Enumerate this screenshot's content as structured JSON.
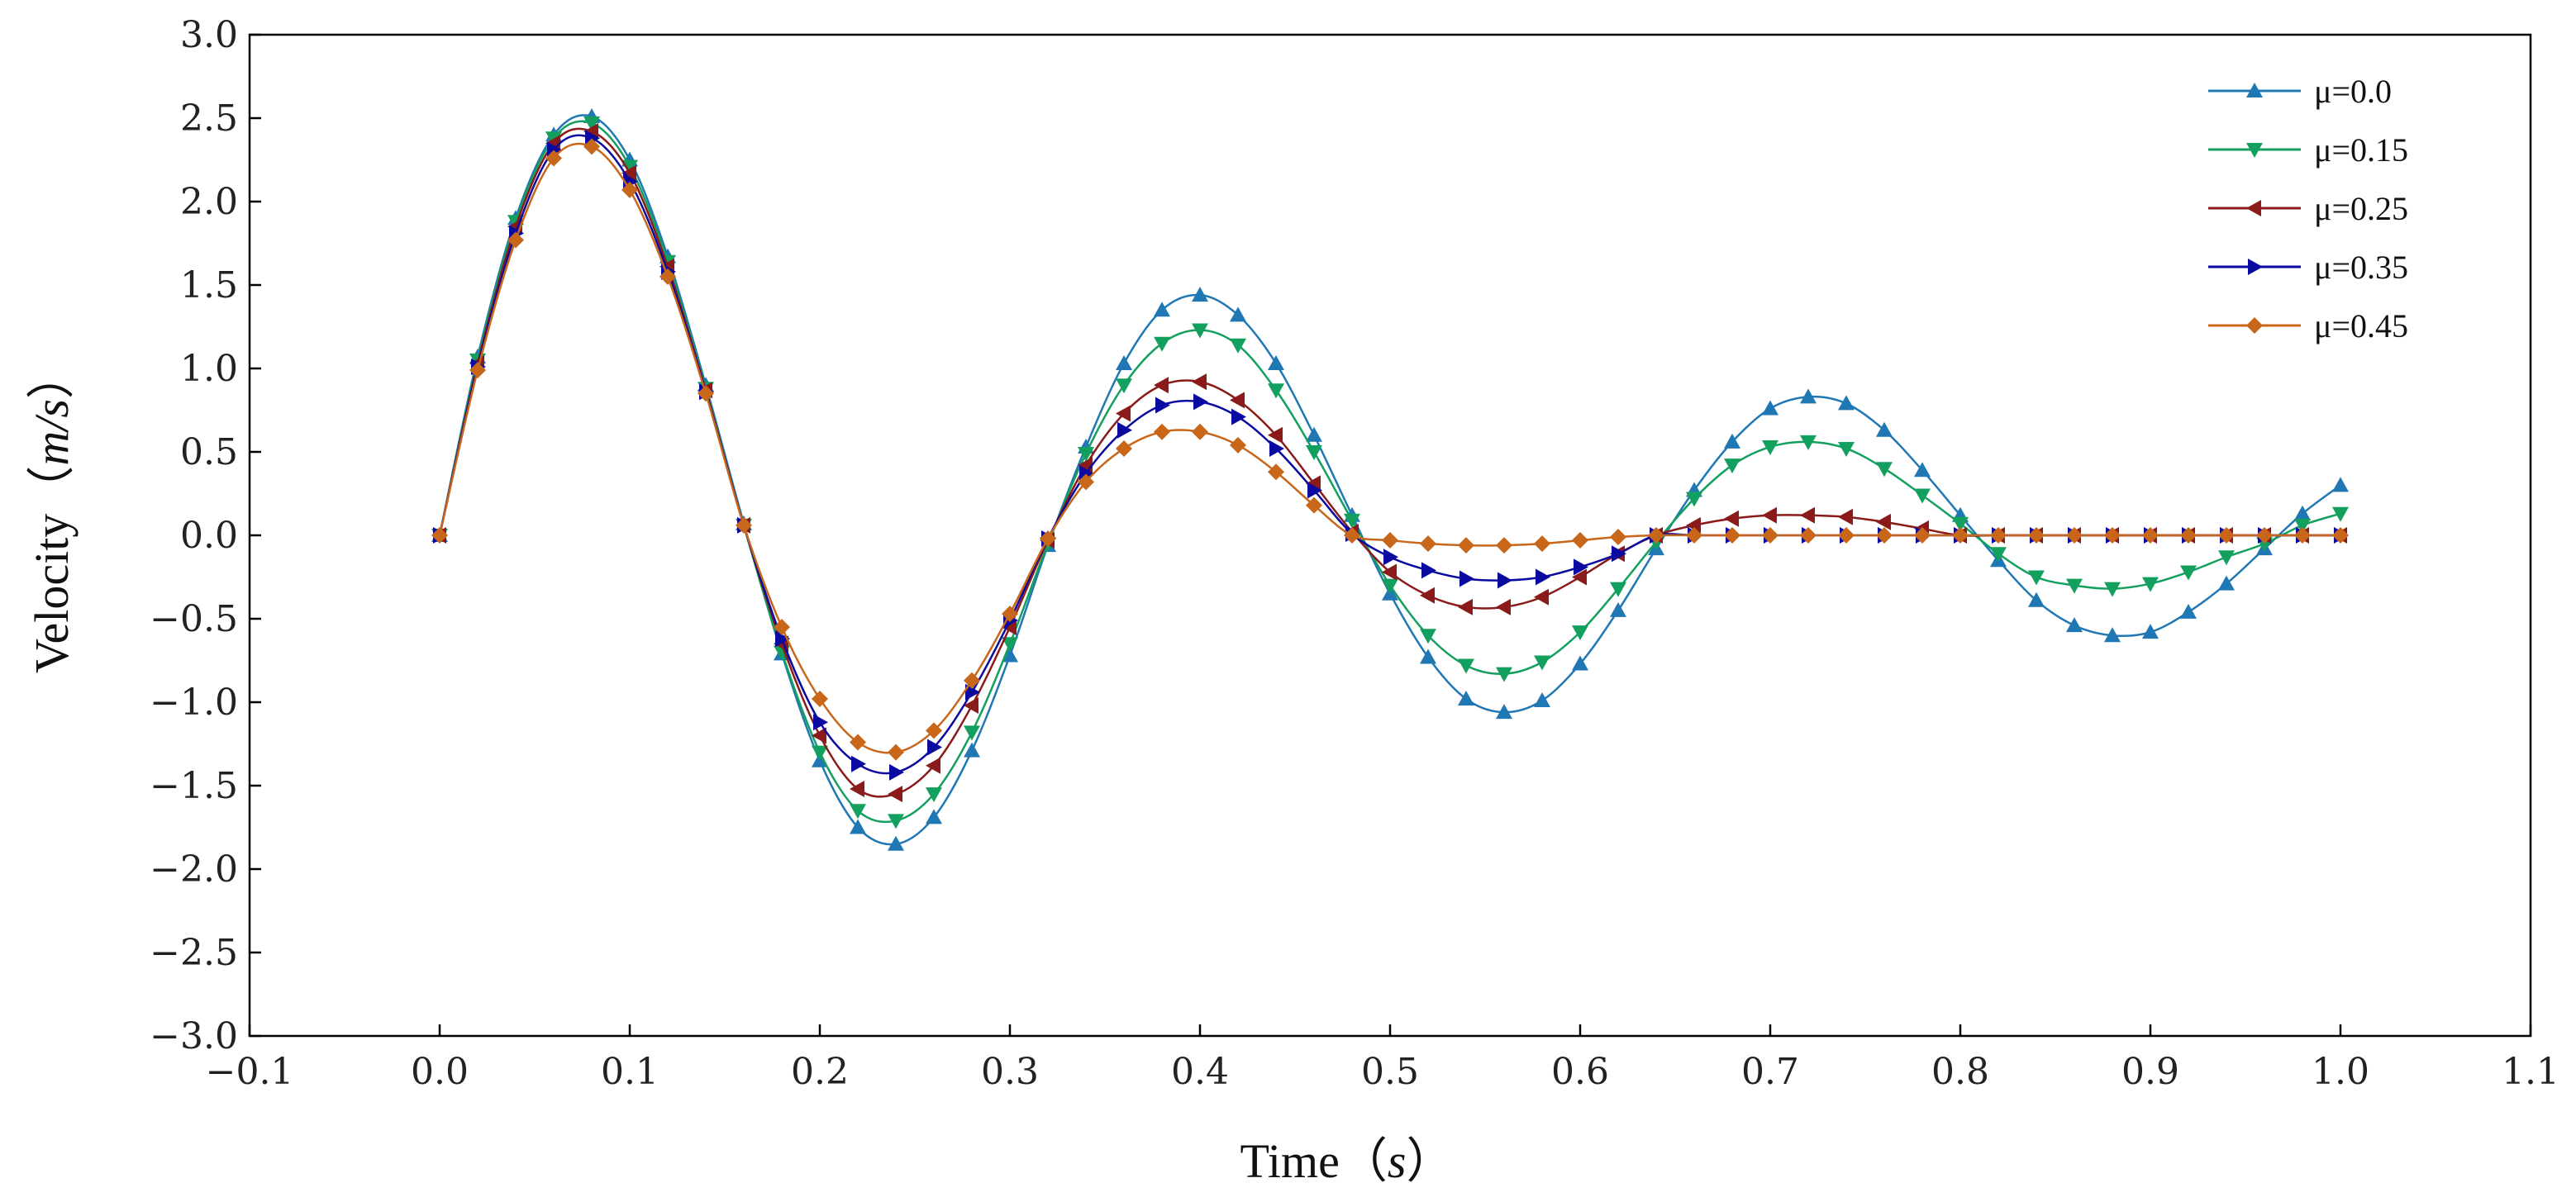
{
  "chart_data": {
    "type": "line",
    "xlabel": "Time",
    "xlabel_unit": "s",
    "ylabel": "Velocity",
    "ylabel_unit": "m/s",
    "xlim": [
      -0.1,
      1.1
    ],
    "ylim": [
      -3.0,
      3.0
    ],
    "x_ticks": [
      -0.1,
      0.0,
      0.1,
      0.2,
      0.3,
      0.4,
      0.5,
      0.6,
      0.7,
      0.8,
      0.9,
      1.0,
      1.1
    ],
    "y_ticks": [
      -3.0,
      -2.5,
      -2.0,
      -1.5,
      -1.0,
      -0.5,
      0.0,
      0.5,
      1.0,
      1.5,
      2.0,
      2.5,
      3.0
    ],
    "grid": false,
    "legend_position": "top-right",
    "x": [
      0.0,
      0.02,
      0.04,
      0.06,
      0.08,
      0.1,
      0.12,
      0.14,
      0.16,
      0.18,
      0.2,
      0.22,
      0.24,
      0.26,
      0.28,
      0.3,
      0.32,
      0.34,
      0.36,
      0.38,
      0.4,
      0.42,
      0.44,
      0.46,
      0.48,
      0.5,
      0.52,
      0.54,
      0.56,
      0.58,
      0.6,
      0.62,
      0.64,
      0.66,
      0.68,
      0.7,
      0.72,
      0.74,
      0.76,
      0.78,
      0.8,
      0.82,
      0.84,
      0.86,
      0.88,
      0.9,
      0.92,
      0.94,
      0.96,
      0.98,
      1.0
    ],
    "series": [
      {
        "name": "μ=0.0",
        "color": "#1f77b4",
        "marker": "triangle-up",
        "values": [
          0.0,
          1.07,
          1.9,
          2.4,
          2.51,
          2.25,
          1.67,
          0.9,
          0.07,
          -0.71,
          -1.35,
          -1.75,
          -1.85,
          -1.69,
          -1.29,
          -0.72,
          -0.06,
          0.53,
          1.03,
          1.35,
          1.44,
          1.32,
          1.03,
          0.6,
          0.12,
          -0.35,
          -0.73,
          -0.98,
          -1.06,
          -0.99,
          -0.77,
          -0.45,
          -0.08,
          0.27,
          0.56,
          0.76,
          0.83,
          0.79,
          0.63,
          0.39,
          0.12,
          -0.15,
          -0.39,
          -0.54,
          -0.6,
          -0.58,
          -0.46,
          -0.29,
          -0.08,
          0.13,
          0.3
        ]
      },
      {
        "name": "μ=0.15",
        "color": "#13a05e",
        "marker": "triangle-down",
        "values": [
          0.0,
          1.05,
          1.88,
          2.38,
          2.47,
          2.21,
          1.64,
          0.88,
          0.06,
          -0.7,
          -1.3,
          -1.65,
          -1.71,
          -1.55,
          -1.18,
          -0.65,
          -0.05,
          0.49,
          0.9,
          1.15,
          1.23,
          1.14,
          0.87,
          0.5,
          0.09,
          -0.3,
          -0.6,
          -0.78,
          -0.83,
          -0.76,
          -0.58,
          -0.32,
          -0.04,
          0.22,
          0.42,
          0.53,
          0.56,
          0.52,
          0.4,
          0.24,
          0.07,
          -0.11,
          -0.25,
          -0.3,
          -0.32,
          -0.29,
          -0.22,
          -0.13,
          -0.05,
          0.06,
          0.13
        ]
      },
      {
        "name": "μ=0.25",
        "color": "#8b1a1a",
        "marker": "triangle-left",
        "values": [
          0.0,
          1.03,
          1.85,
          2.35,
          2.42,
          2.17,
          1.61,
          0.87,
          0.06,
          -0.65,
          -1.2,
          -1.52,
          -1.55,
          -1.38,
          -1.02,
          -0.55,
          -0.03,
          0.42,
          0.73,
          0.9,
          0.92,
          0.81,
          0.6,
          0.31,
          0.02,
          -0.22,
          -0.36,
          -0.43,
          -0.43,
          -0.37,
          -0.25,
          -0.11,
          0.0,
          0.06,
          0.1,
          0.12,
          0.12,
          0.11,
          0.08,
          0.04,
          0.0,
          0.0,
          0.0,
          0.0,
          0.0,
          0.0,
          0.0,
          0.0,
          0.0,
          0.0,
          0.0
        ]
      },
      {
        "name": "μ=0.35",
        "color": "#0a0aa0",
        "marker": "triangle-right",
        "values": [
          0.0,
          1.01,
          1.81,
          2.31,
          2.38,
          2.12,
          1.58,
          0.86,
          0.06,
          -0.62,
          -1.12,
          -1.37,
          -1.42,
          -1.27,
          -0.94,
          -0.51,
          -0.02,
          0.37,
          0.63,
          0.78,
          0.8,
          0.71,
          0.52,
          0.27,
          0.01,
          -0.13,
          -0.21,
          -0.26,
          -0.27,
          -0.25,
          -0.19,
          -0.11,
          0.0,
          0.0,
          0.0,
          0.0,
          0.0,
          0.0,
          0.0,
          0.0,
          0.0,
          0.0,
          0.0,
          0.0,
          0.0,
          0.0,
          0.0,
          0.0,
          0.0,
          0.0,
          0.0
        ]
      },
      {
        "name": "μ=0.45",
        "color": "#c8661a",
        "marker": "diamond",
        "values": [
          0.0,
          0.99,
          1.77,
          2.26,
          2.33,
          2.07,
          1.55,
          0.85,
          0.06,
          -0.55,
          -0.98,
          -1.24,
          -1.3,
          -1.17,
          -0.87,
          -0.47,
          -0.02,
          0.32,
          0.52,
          0.62,
          0.62,
          0.54,
          0.38,
          0.18,
          0.0,
          -0.03,
          -0.05,
          -0.06,
          -0.06,
          -0.05,
          -0.03,
          -0.01,
          0.0,
          0.0,
          0.0,
          0.0,
          0.0,
          0.0,
          0.0,
          0.0,
          0.0,
          0.0,
          0.0,
          0.0,
          0.0,
          0.0,
          0.0,
          0.0,
          0.0,
          0.0,
          0.0
        ]
      }
    ]
  }
}
